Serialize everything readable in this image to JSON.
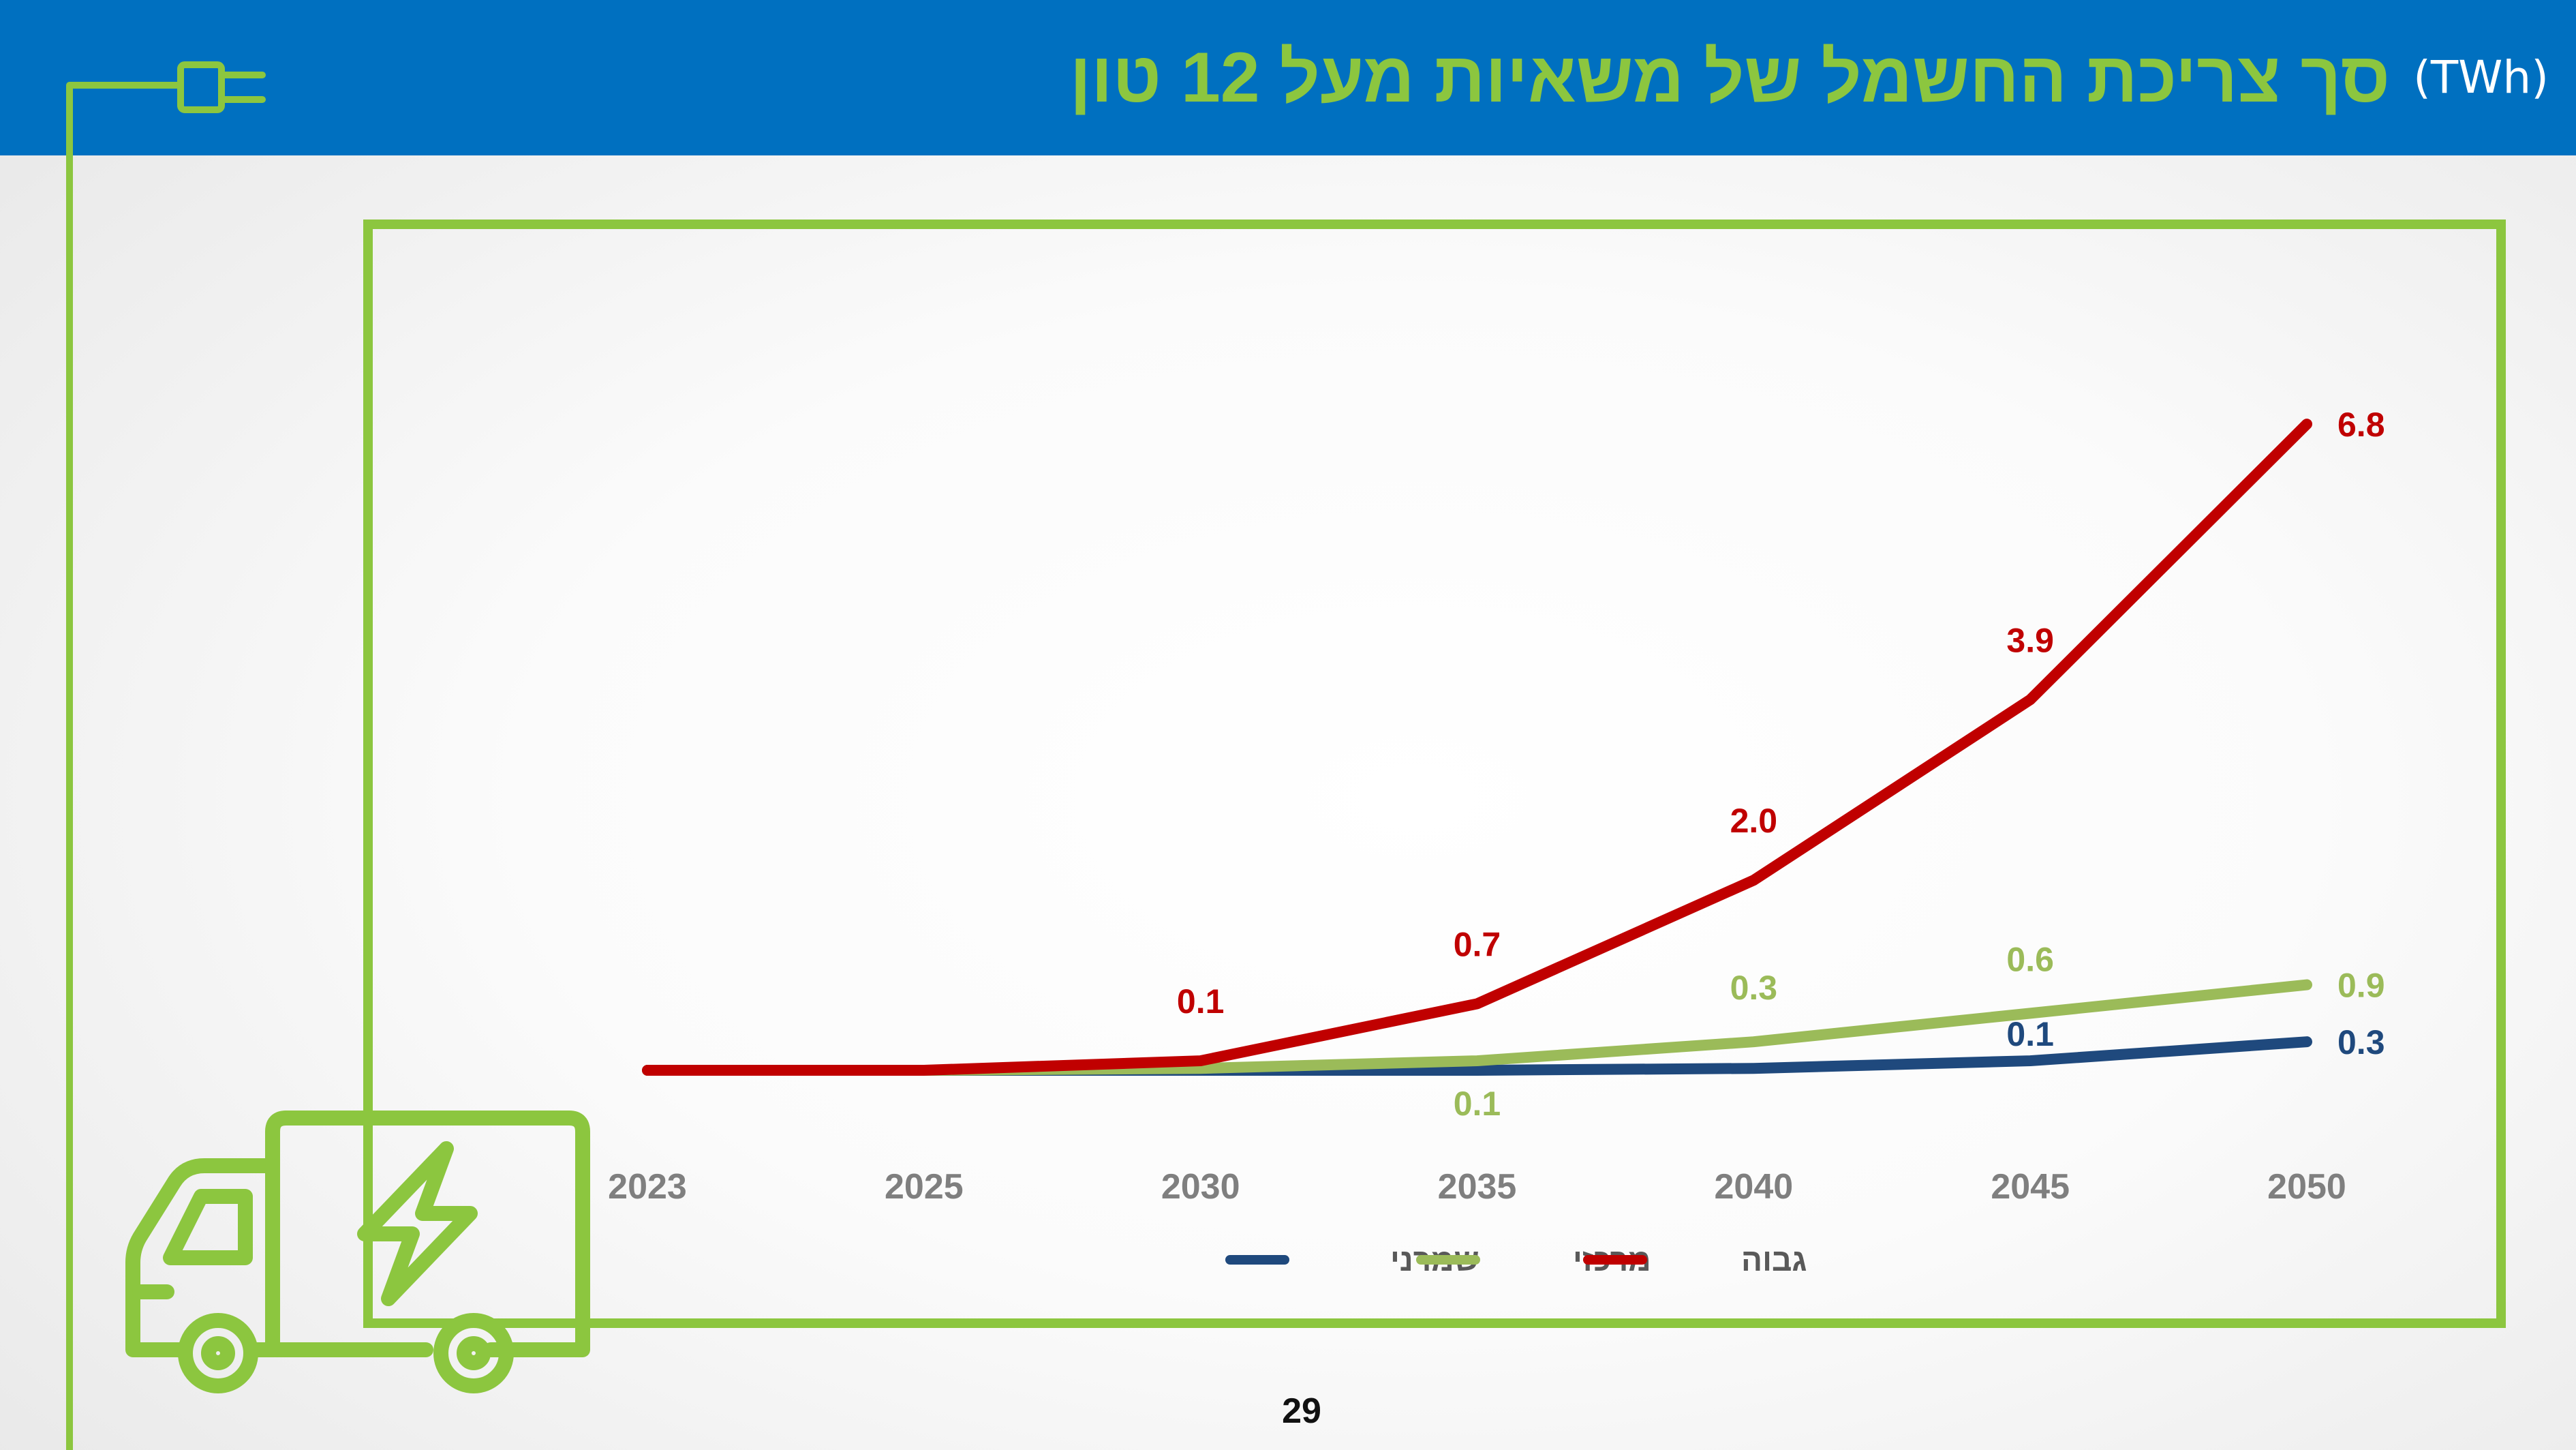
{
  "header": {
    "title": "סך צריכת החשמל של משאיות מעל 12 טון",
    "unit": "(TWh)"
  },
  "page_number": "29",
  "icons": [
    "plug-icon",
    "electric-truck-icon",
    "lightning-bolt-icon"
  ],
  "colors": {
    "header_bg": "#0070c0",
    "accent_green": "#8cc63f",
    "series_conservative": "#1f497d",
    "series_central": "#9bbb59",
    "series_high": "#c00000"
  },
  "chart_data": {
    "type": "line",
    "title": "סך צריכת החשמל של משאיות מעל 12 טון",
    "unit": "TWh",
    "categories": [
      "2023",
      "2025",
      "2030",
      "2035",
      "2040",
      "2045",
      "2050"
    ],
    "ylim": [
      0,
      7.5
    ],
    "grid": false,
    "legend_position": "bottom",
    "series": [
      {
        "name": "שמרני",
        "color": "#1f497d",
        "values": [
          0.0,
          0.0,
          0.0,
          0.0,
          0.02,
          0.1,
          0.3
        ],
        "labels": [
          "",
          "",
          "",
          "",
          "",
          "0.1",
          "0.3"
        ]
      },
      {
        "name": "מרכזי",
        "color": "#9bbb59",
        "values": [
          0.0,
          0.0,
          0.02,
          0.1,
          0.3,
          0.6,
          0.9
        ],
        "labels": [
          "",
          "",
          "",
          "0.1",
          "0.3",
          "0.6",
          "0.9"
        ]
      },
      {
        "name": "גבוה",
        "color": "#c00000",
        "values": [
          0.0,
          0.0,
          0.1,
          0.7,
          2.0,
          3.9,
          6.8
        ],
        "labels": [
          "",
          "",
          "0.1",
          "0.7",
          "2.0",
          "3.9",
          "6.8"
        ]
      }
    ]
  }
}
